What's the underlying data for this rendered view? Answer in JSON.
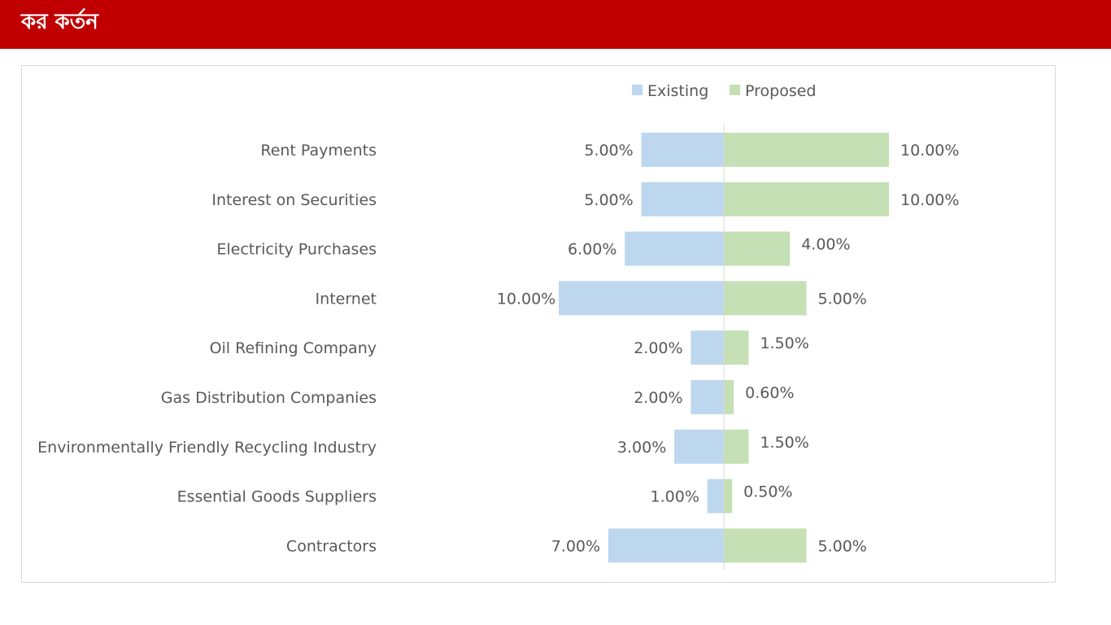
{
  "header": {
    "title": "কর কর্তন",
    "background_color": "#c00000"
  },
  "chart_data": {
    "type": "bar",
    "orientation": "horizontal",
    "layout": "diverging",
    "title": "",
    "xlabel": "",
    "ylabel": "",
    "legend_position": "top",
    "grid": false,
    "categories": [
      "Rent Payments",
      "Interest on Securities",
      "Electricity Purchases",
      "Internet",
      "Oil Refining Company",
      "Gas Distribution Companies",
      "Environmentally Friendly Recycling Industry",
      "Essential Goods Suppliers",
      "Contractors"
    ],
    "series": [
      {
        "name": "Existing",
        "color": "#bdd7ee",
        "values": [
          5.0,
          5.0,
          6.0,
          10.0,
          2.0,
          2.0,
          3.0,
          1.0,
          7.0
        ],
        "labels": [
          "5.00%",
          "5.00%",
          "6.00%",
          "10.00%",
          "2.00%",
          "2.00%",
          "3.00%",
          "1.00%",
          "7.00%"
        ]
      },
      {
        "name": "Proposed",
        "color": "#c5e0b4",
        "values": [
          10.0,
          10.0,
          4.0,
          5.0,
          1.5,
          0.6,
          1.5,
          0.5,
          5.0
        ],
        "labels": [
          "10.00%",
          "10.00%",
          "4.00%",
          "5.00%",
          "1.50%",
          "0.60%",
          "1.50%",
          "0.50%",
          "5.00%"
        ]
      }
    ],
    "axis_color": "#d9d9d9",
    "text_color": "#595959"
  }
}
